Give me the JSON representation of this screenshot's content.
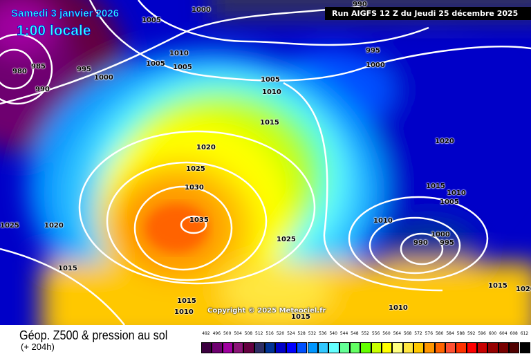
{
  "header": {
    "date": "Samedi 3 janvier 2026",
    "time": "1:00 locale",
    "run": "Run AIGFS 12 Z du Jeudi 25 décembre 2025"
  },
  "map": {
    "copyright": "Copyright © 2025 Meteociel.fr",
    "isobar_labels": [
      "1000",
      "1005",
      "1010",
      "1005",
      "1005",
      "985",
      "980",
      "995",
      "1000",
      "990",
      "990",
      "995",
      "1000",
      "1005",
      "1010",
      "1015",
      "1020",
      "1025",
      "1030",
      "1035",
      "1020",
      "1015",
      "1010",
      "1005",
      "1010",
      "1000",
      "995",
      "990",
      "1025",
      "1025",
      "1020",
      "1015",
      "1015",
      "1010",
      "1015",
      "1010",
      "1020",
      "1015"
    ],
    "isobar_unit": "hPa"
  },
  "legend": {
    "title": "Géop. Z500 & pression au sol",
    "lead_time": "(+ 204h)",
    "scale": [
      {
        "value": "492",
        "color": "#3c0040"
      },
      {
        "value": "496",
        "color": "#6e0070"
      },
      {
        "value": "500",
        "color": "#a000a0"
      },
      {
        "value": "504",
        "color": "#8c1478"
      },
      {
        "value": "508",
        "color": "#640040"
      },
      {
        "value": "512",
        "color": "#2d2d64"
      },
      {
        "value": "516",
        "color": "#003296"
      },
      {
        "value": "520",
        "color": "#0000c8"
      },
      {
        "value": "524",
        "color": "#0000ff"
      },
      {
        "value": "528",
        "color": "#0050ff"
      },
      {
        "value": "532",
        "color": "#0096ff"
      },
      {
        "value": "536",
        "color": "#32c8ff"
      },
      {
        "value": "540",
        "color": "#64ffff"
      },
      {
        "value": "544",
        "color": "#64ff96"
      },
      {
        "value": "548",
        "color": "#64ff64"
      },
      {
        "value": "552",
        "color": "#64ff00"
      },
      {
        "value": "556",
        "color": "#c8ff00"
      },
      {
        "value": "560",
        "color": "#ffff00"
      },
      {
        "value": "564",
        "color": "#ffff80"
      },
      {
        "value": "568",
        "color": "#ffe640"
      },
      {
        "value": "572",
        "color": "#ffc800"
      },
      {
        "value": "576",
        "color": "#ff9600"
      },
      {
        "value": "580",
        "color": "#ff6400"
      },
      {
        "value": "584",
        "color": "#ff5032"
      },
      {
        "value": "588",
        "color": "#ff3200"
      },
      {
        "value": "592",
        "color": "#ff0000"
      },
      {
        "value": "596",
        "color": "#c80000"
      },
      {
        "value": "600",
        "color": "#960000"
      },
      {
        "value": "604",
        "color": "#780000"
      },
      {
        "value": "608",
        "color": "#500000"
      },
      {
        "value": "612",
        "color": "#000000"
      }
    ]
  }
}
